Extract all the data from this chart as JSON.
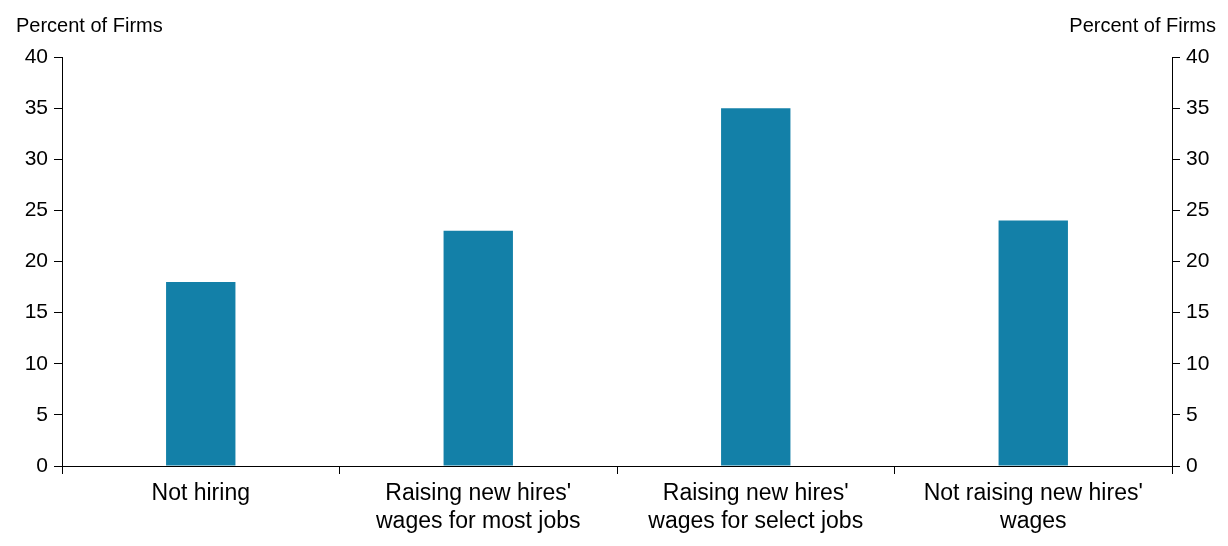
{
  "chart_data": {
    "type": "bar",
    "ylabel": "Percent of Firms",
    "y2label": "Percent of Firms",
    "categories": [
      "Not hiring",
      "Raising new hires' wages for most jobs",
      "Raising new hires' wages for select jobs",
      "Not raising new hires' wages"
    ],
    "values": [
      18,
      23,
      35,
      24
    ],
    "color": "#1380a8",
    "ylim": [
      0,
      40
    ],
    "yticks": [
      0,
      5,
      10,
      15,
      20,
      25,
      30,
      35,
      40
    ],
    "y2lim": [
      0,
      40
    ],
    "y2ticks": [
      0,
      5,
      10,
      15,
      20,
      25,
      30,
      35,
      40
    ],
    "grid": false,
    "legend": false
  }
}
